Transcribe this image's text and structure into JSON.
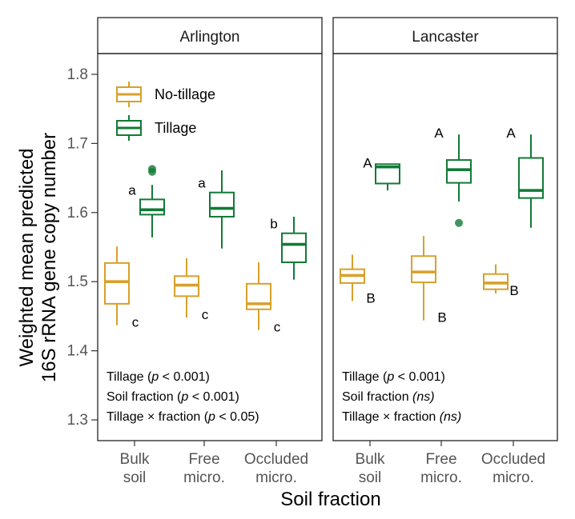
{
  "chart_data": {
    "type": "boxplot",
    "ylabel_line1": "Weighted mean predicted",
    "ylabel_line2": "16S rRNA gene copy number",
    "xlabel": "Soil fraction",
    "ylim": [
      1.27,
      1.83
    ],
    "yticks": [
      1.3,
      1.4,
      1.5,
      1.6,
      1.7,
      1.8
    ],
    "ytick_labels": [
      "1.3",
      "1.4",
      "1.5",
      "1.6",
      "1.7",
      "1.8"
    ],
    "categories": [
      [
        "Bulk",
        "soil"
      ],
      [
        "Free",
        "micro."
      ],
      [
        "Occluded",
        "micro."
      ]
    ],
    "legend": {
      "position": "top-left",
      "entries": [
        {
          "name": "No-tillage",
          "color": "#d8a02a"
        },
        {
          "name": "Tillage",
          "color": "#127a36"
        }
      ]
    },
    "panels": [
      {
        "title": "Arlington",
        "groups": [
          {
            "category": 0,
            "series": "No-tillage",
            "min": 1.437,
            "q1": 1.468,
            "median": 1.5,
            "q3": 1.527,
            "max": 1.551,
            "outliers": [],
            "letter": "c"
          },
          {
            "category": 0,
            "series": "Tillage",
            "min": 1.564,
            "q1": 1.597,
            "median": 1.604,
            "q3": 1.619,
            "max": 1.64,
            "outliers": [
              1.663,
              1.659
            ],
            "letter": "a"
          },
          {
            "category": 1,
            "series": "No-tillage",
            "min": 1.448,
            "q1": 1.479,
            "median": 1.495,
            "q3": 1.508,
            "max": 1.534,
            "outliers": [],
            "letter": "c"
          },
          {
            "category": 1,
            "series": "Tillage",
            "min": 1.548,
            "q1": 1.594,
            "median": 1.606,
            "q3": 1.629,
            "max": 1.661,
            "outliers": [],
            "letter": "a"
          },
          {
            "category": 2,
            "series": "No-tillage",
            "min": 1.43,
            "q1": 1.46,
            "median": 1.468,
            "q3": 1.497,
            "max": 1.528,
            "outliers": [],
            "letter": "c"
          },
          {
            "category": 2,
            "series": "Tillage",
            "min": 1.503,
            "q1": 1.528,
            "median": 1.554,
            "q3": 1.57,
            "max": 1.594,
            "outliers": [],
            "letter": "b"
          }
        ],
        "stats": [
          {
            "prefix": "Tillage (",
            "p": "p",
            "suffix": " < 0.001)",
            "ns": false
          },
          {
            "prefix": "Soil fraction (",
            "p": "p",
            "suffix": " < 0.001)",
            "ns": false
          },
          {
            "prefix": "Tillage × fraction (",
            "p": "p",
            "suffix": " < 0.05)",
            "ns": false
          }
        ]
      },
      {
        "title": "Lancaster",
        "groups": [
          {
            "category": 0,
            "series": "No-tillage",
            "min": 1.472,
            "q1": 1.498,
            "median": 1.509,
            "q3": 1.518,
            "max": 1.539,
            "outliers": [],
            "letter": "B"
          },
          {
            "category": 0,
            "series": "Tillage",
            "min": 1.632,
            "q1": 1.642,
            "median": 1.666,
            "q3": 1.67,
            "max": 1.67,
            "outliers": [],
            "letter": "A"
          },
          {
            "category": 1,
            "series": "No-tillage",
            "min": 1.444,
            "q1": 1.499,
            "median": 1.514,
            "q3": 1.537,
            "max": 1.566,
            "outliers": [],
            "letter": "B"
          },
          {
            "category": 1,
            "series": "Tillage",
            "min": 1.616,
            "q1": 1.643,
            "median": 1.662,
            "q3": 1.676,
            "max": 1.713,
            "outliers": [
              1.585
            ],
            "letter": "A"
          },
          {
            "category": 2,
            "series": "No-tillage",
            "min": 1.483,
            "q1": 1.489,
            "median": 1.498,
            "q3": 1.511,
            "max": 1.525,
            "outliers": [],
            "letter": "B"
          },
          {
            "category": 2,
            "series": "Tillage",
            "min": 1.578,
            "q1": 1.621,
            "median": 1.632,
            "q3": 1.679,
            "max": 1.713,
            "outliers": [],
            "letter": "A"
          }
        ],
        "stats": [
          {
            "prefix": "Tillage (",
            "p": "p",
            "suffix": " < 0.001)",
            "ns": false
          },
          {
            "prefix": "Soil fraction ",
            "p": "(ns)",
            "suffix": "",
            "ns": true
          },
          {
            "prefix": "Tillage × fraction ",
            "p": "(ns)",
            "suffix": "",
            "ns": true
          }
        ]
      }
    ]
  }
}
